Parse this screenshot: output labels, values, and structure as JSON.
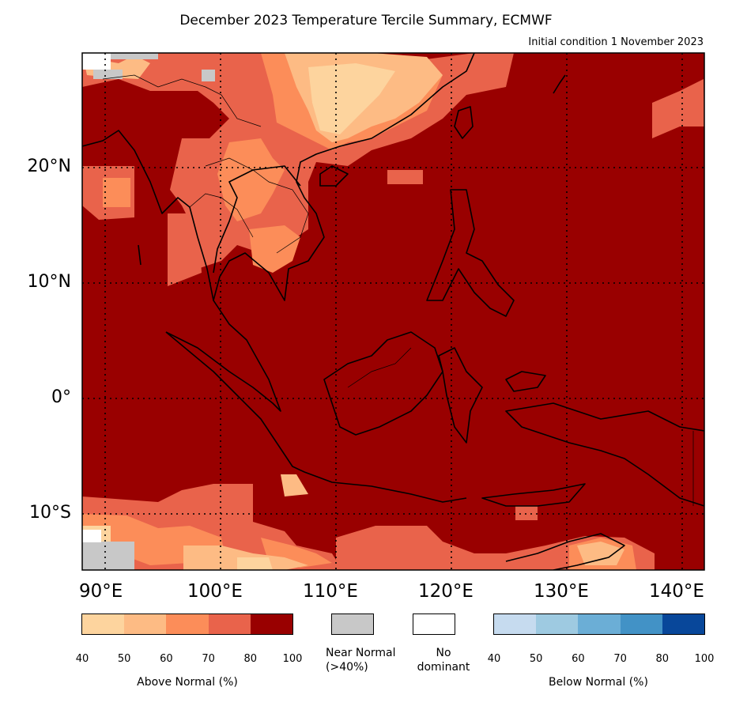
{
  "title": "December 2023 Temperature Tercile Summary, ECMWF",
  "subtitle": "Initial condition 1 November 2023",
  "map": {
    "lon_range": [
      88,
      142
    ],
    "lat_range": [
      -15,
      30
    ],
    "lat_labels": [
      "20°N",
      "10°N",
      "0°",
      "10°S"
    ],
    "lon_labels": [
      "90°E",
      "100°E",
      "110°E",
      "120°E",
      "130°E",
      "140°E"
    ],
    "gridlines": "dotted",
    "dominant_category": "Above Normal 80-100%"
  },
  "legend": {
    "above": {
      "title": "Above Normal (%)",
      "ticks": [
        "40",
        "50",
        "60",
        "70",
        "80",
        "100"
      ],
      "colors": [
        "#fdd49e",
        "#fdbb84",
        "#fc8d59",
        "#e9634b",
        "#990000"
      ]
    },
    "near": {
      "label_line1": "Near Normal",
      "label_line2": "(>40%)",
      "color": "#c8c8c8"
    },
    "none": {
      "label_line1": "No",
      "label_line2": "dominant",
      "color": "#ffffff"
    },
    "below": {
      "title": "Below Normal (%)",
      "ticks": [
        "40",
        "50",
        "60",
        "70",
        "80",
        "100"
      ],
      "colors": [
        "#c6dbef",
        "#9ecae1",
        "#6baed6",
        "#4292c6",
        "#08479a"
      ]
    }
  }
}
